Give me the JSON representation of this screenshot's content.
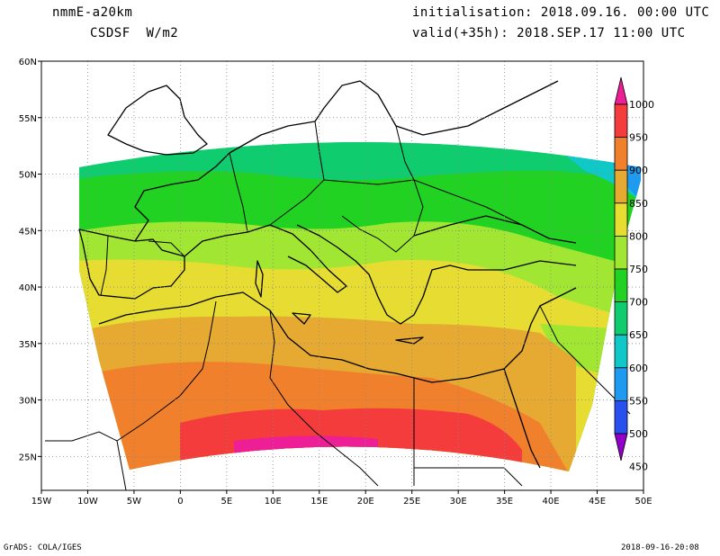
{
  "header": {
    "model": "nmmE-a20km",
    "field": "CSDSF  W/m2",
    "initialisation": "initialisation: 2018.09.16. 00:00 UTC",
    "valid": "valid(+35h): 2018.SEP.17 11:00 UTC"
  },
  "footer": {
    "left": "GrADS: COLA/IGES",
    "right": "2018-09-16-20:08"
  },
  "map": {
    "lon_range": [
      -15,
      50
    ],
    "lat_range": [
      22,
      60
    ],
    "lon_ticks": [
      {
        "value": -15,
        "label": "15W"
      },
      {
        "value": -10,
        "label": "10W"
      },
      {
        "value": -5,
        "label": "5W"
      },
      {
        "value": 0,
        "label": "0"
      },
      {
        "value": 5,
        "label": "5E"
      },
      {
        "value": 10,
        "label": "10E"
      },
      {
        "value": 15,
        "label": "15E"
      },
      {
        "value": 20,
        "label": "20E"
      },
      {
        "value": 25,
        "label": "25E"
      },
      {
        "value": 30,
        "label": "30E"
      },
      {
        "value": 35,
        "label": "35E"
      },
      {
        "value": 40,
        "label": "40E"
      },
      {
        "value": 45,
        "label": "45E"
      },
      {
        "value": 50,
        "label": "50E"
      }
    ],
    "lat_ticks": [
      {
        "value": 25,
        "label": "25N"
      },
      {
        "value": 30,
        "label": "30N"
      },
      {
        "value": 35,
        "label": "35N"
      },
      {
        "value": 40,
        "label": "40N"
      },
      {
        "value": 45,
        "label": "45N"
      },
      {
        "value": 50,
        "label": "50N"
      },
      {
        "value": 55,
        "label": "55N"
      },
      {
        "value": 60,
        "label": "60N"
      }
    ],
    "grid": true
  },
  "colorbar": {
    "labels": [
      "1000",
      "950",
      "900",
      "850",
      "800",
      "750",
      "700",
      "650",
      "600",
      "550",
      "500",
      "450"
    ],
    "colors": [
      "#ee1e96",
      "#f43c3c",
      "#f0802c",
      "#e6aa32",
      "#e6dc32",
      "#a0e632",
      "#22d222",
      "#0fcc6e",
      "#10c8c8",
      "#1e9bf0",
      "#2850f0",
      "#9000c8"
    ]
  }
}
